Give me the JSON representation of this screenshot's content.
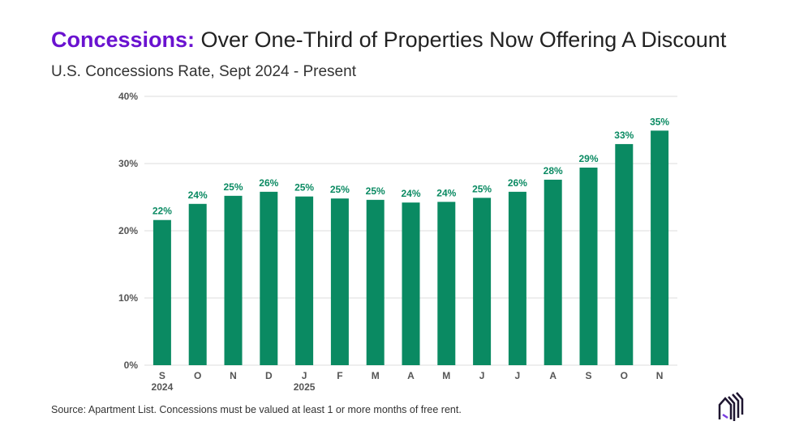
{
  "header": {
    "title_highlight": "Concessions:",
    "title_rest": " Over One-Third of Properties Now Offering A Discount",
    "subtitle": "U.S. Concessions Rate, Sept 2024 - Present"
  },
  "footer": {
    "source": "Source: Apartment List. Concessions must be valued at least 1 or more months of free rent.",
    "logo_icon": "apartment-list-logo-icon"
  },
  "colors": {
    "title_highlight": "#6a12d0",
    "bar": "#0a8a62",
    "label": "#0a8a62",
    "axis_text": "#555555",
    "grid": "#dddddd"
  },
  "chart_data": {
    "type": "bar",
    "title": "U.S. Concessions Rate, Sept 2024 - Present",
    "categories": [
      "S",
      "O",
      "N",
      "D",
      "J",
      "F",
      "M",
      "A",
      "M",
      "J",
      "J",
      "A",
      "S",
      "O",
      "N"
    ],
    "year_labels": {
      "0": "2024",
      "4": "2025"
    },
    "values": [
      21.6,
      24.0,
      25.2,
      25.8,
      25.1,
      24.8,
      24.6,
      24.2,
      24.3,
      24.9,
      25.8,
      27.6,
      29.4,
      32.9,
      34.9
    ],
    "data_labels": [
      "22%",
      "24%",
      "25%",
      "26%",
      "25%",
      "25%",
      "25%",
      "24%",
      "24%",
      "25%",
      "26%",
      "28%",
      "29%",
      "33%",
      "35%"
    ],
    "ylim": [
      0,
      40
    ],
    "yticks": [
      0,
      10,
      20,
      30,
      40
    ],
    "ytick_labels": [
      "0%",
      "10%",
      "20%",
      "30%",
      "40%"
    ],
    "grid": true,
    "xlabel": "",
    "ylabel": ""
  }
}
